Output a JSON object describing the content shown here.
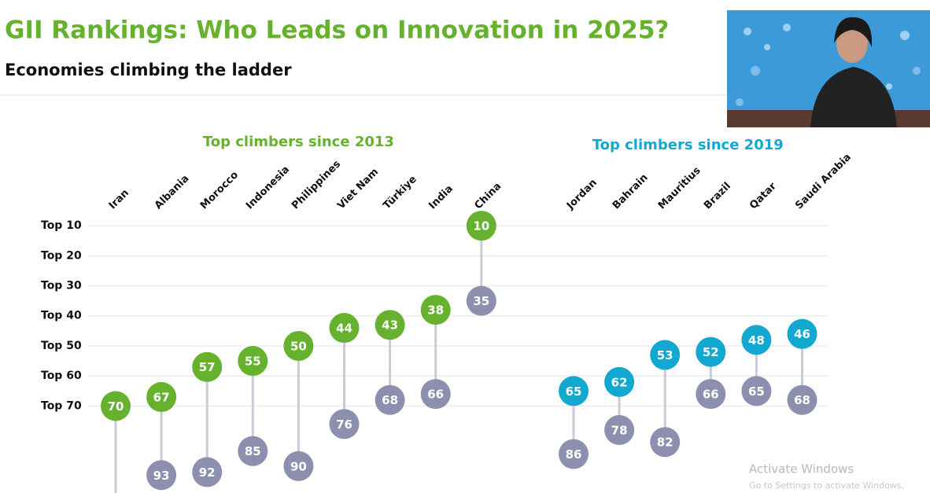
{
  "chart_data": {
    "type": "dumbbell",
    "title": "GII Rankings: Who Leads on Innovation in 2025?",
    "subtitle": "Economies climbing the ladder",
    "ylim": [
      5,
      100
    ],
    "y_inverted": true,
    "yticks": [
      {
        "value": 10,
        "label": "Top 10"
      },
      {
        "value": 20,
        "label": "Top 20"
      },
      {
        "value": 30,
        "label": "Top 30"
      },
      {
        "value": 40,
        "label": "Top 40"
      },
      {
        "value": 50,
        "label": "Top 50"
      },
      {
        "value": 60,
        "label": "Top 60"
      },
      {
        "value": 70,
        "label": "Top 70"
      }
    ],
    "grid": true,
    "earlier_color": "#8c90ae",
    "groups": [
      {
        "title": "Top climbers since 2013",
        "color": "#66b22e",
        "categories": [
          "Iran",
          "Albania",
          "Morocco",
          "Indonesia",
          "Philippines",
          "Viet Nam",
          "Türkiye",
          "India",
          "China"
        ],
        "earlier": [
          null,
          93,
          92,
          85,
          90,
          76,
          68,
          66,
          35
        ],
        "latest": [
          70,
          67,
          57,
          55,
          50,
          44,
          43,
          38,
          10
        ]
      },
      {
        "title": "Top climbers since 2019",
        "color": "#13a8cf",
        "categories": [
          "Jordan",
          "Bahrain",
          "Mauritius",
          "Brazil",
          "Qatar",
          "Saudi Arabia"
        ],
        "earlier": [
          86,
          78,
          82,
          66,
          65,
          68
        ],
        "latest": [
          65,
          62,
          53,
          52,
          48,
          46
        ]
      }
    ]
  },
  "watermark": {
    "title": "Activate Windows",
    "text": "Go to Settings to activate Windows."
  }
}
